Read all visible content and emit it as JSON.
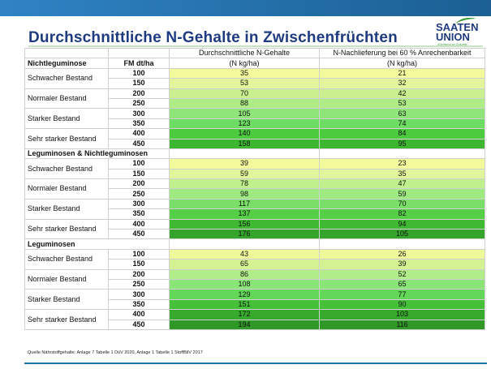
{
  "title": "Durchschnittliche N-Gehalte in Zwischenfrüchten",
  "logo": {
    "line1": "SAATEN",
    "line2": "UNION",
    "tagline": "Züchtung ist Zukunft"
  },
  "header": {
    "col3": "Durchschnittliche N-Gehalte",
    "col4": "N-Nachlieferung bei 60 % Anrechenbarkeit",
    "fm": "FM dt/ha",
    "unit": "(N kg/ha)"
  },
  "groups": [
    {
      "name": "Nichtleguminose",
      "bestands": [
        {
          "label": "Schwacher Bestand",
          "rows": [
            {
              "fm": "100",
              "n": "35",
              "nn": "21",
              "c": "#f2fa9c"
            },
            {
              "fm": "150",
              "n": "53",
              "nn": "32",
              "c": "#e3f59a"
            }
          ]
        },
        {
          "label": "Normaler Bestand",
          "rows": [
            {
              "fm": "200",
              "n": "70",
              "nn": "42",
              "c": "#c9ef8e"
            },
            {
              "fm": "250",
              "n": "88",
              "nn": "53",
              "c": "#aeec86"
            }
          ]
        },
        {
          "label": "Starker Bestand",
          "rows": [
            {
              "fm": "300",
              "n": "105",
              "nn": "63",
              "c": "#8fe57a"
            },
            {
              "fm": "350",
              "n": "123",
              "nn": "74",
              "c": "#6ddc63"
            }
          ]
        },
        {
          "label": "Sehr starker Bestand",
          "rows": [
            {
              "fm": "400",
              "n": "140",
              "nn": "84",
              "c": "#4ccb3e"
            },
            {
              "fm": "450",
              "n": "158",
              "nn": "95",
              "c": "#3db72f"
            }
          ]
        }
      ]
    },
    {
      "name": "Leguminosen & Nichtleguminosen",
      "bestands": [
        {
          "label": "Schwacher Bestand",
          "rows": [
            {
              "fm": "100",
              "n": "39",
              "nn": "23",
              "c": "#f2fa9c"
            },
            {
              "fm": "150",
              "n": "59",
              "nn": "35",
              "c": "#e1f59a"
            }
          ]
        },
        {
          "label": "Normaler Bestand",
          "rows": [
            {
              "fm": "200",
              "n": "78",
              "nn": "47",
              "c": "#bff08c"
            },
            {
              "fm": "250",
              "n": "98",
              "nn": "59",
              "c": "#9fea80"
            }
          ]
        },
        {
          "label": "Starker Bestand",
          "rows": [
            {
              "fm": "300",
              "n": "117",
              "nn": "70",
              "c": "#79df68"
            },
            {
              "fm": "350",
              "n": "137",
              "nn": "82",
              "c": "#55cf45"
            }
          ]
        },
        {
          "label": "Sehr starker Bestand",
          "rows": [
            {
              "fm": "400",
              "n": "156",
              "nn": "94",
              "c": "#3fb932"
            },
            {
              "fm": "450",
              "n": "176",
              "nn": "105",
              "c": "#34a52a"
            }
          ]
        }
      ]
    },
    {
      "name": "Leguminosen",
      "bestands": [
        {
          "label": "Schwacher Bestand",
          "rows": [
            {
              "fm": "100",
              "n": "43",
              "nn": "26",
              "c": "#eef99a"
            },
            {
              "fm": "150",
              "n": "65",
              "nn": "39",
              "c": "#d4f292"
            }
          ]
        },
        {
          "label": "Normaler Bestand",
          "rows": [
            {
              "fm": "200",
              "n": "86",
              "nn": "52",
              "c": "#b0ec87"
            },
            {
              "fm": "250",
              "n": "108",
              "nn": "65",
              "c": "#8ae577"
            }
          ]
        },
        {
          "label": "Starker Bestand",
          "rows": [
            {
              "fm": "300",
              "n": "129",
              "nn": "77",
              "c": "#62d758"
            },
            {
              "fm": "350",
              "n": "151",
              "nn": "90",
              "c": "#44c138"
            }
          ]
        },
        {
          "label": "Sehr starker Bestand",
          "rows": [
            {
              "fm": "400",
              "n": "172",
              "nn": "103",
              "c": "#37a92c"
            },
            {
              "fm": "450",
              "n": "194",
              "nn": "116",
              "c": "#2f9826"
            }
          ]
        }
      ]
    }
  ],
  "source": "Quelle Nährstoffgehalte: Anlage 7 Tabelle 1 DüV 2020, Anlage 1 Tabelle 1 StoffBilV 2017"
}
